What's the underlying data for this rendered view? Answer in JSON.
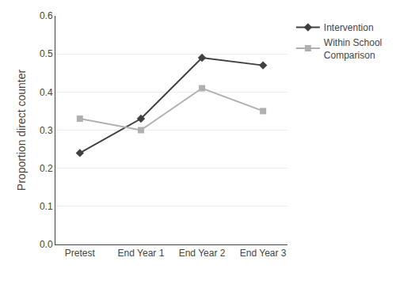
{
  "chart_data": {
    "type": "line",
    "categories": [
      "Pretest",
      "End Year 1",
      "End Year 2",
      "End Year 3"
    ],
    "series": [
      {
        "name": "Intervention",
        "color": "#404040",
        "marker": "diamond",
        "values": [
          0.24,
          0.33,
          0.49,
          0.47
        ]
      },
      {
        "name": "Within School\nComparison",
        "color": "#b0b0b0",
        "marker": "square",
        "values": [
          0.33,
          0.3,
          0.41,
          0.35
        ]
      }
    ],
    "ylabel": "Proportion direct counter",
    "ylim": [
      0.0,
      0.6
    ],
    "yticks": [
      {
        "value": 0.0,
        "label": "0.0"
      },
      0.1,
      0.2,
      0.3,
      0.4,
      0.5,
      0.6
    ],
    "grid": true,
    "legend": "right"
  }
}
